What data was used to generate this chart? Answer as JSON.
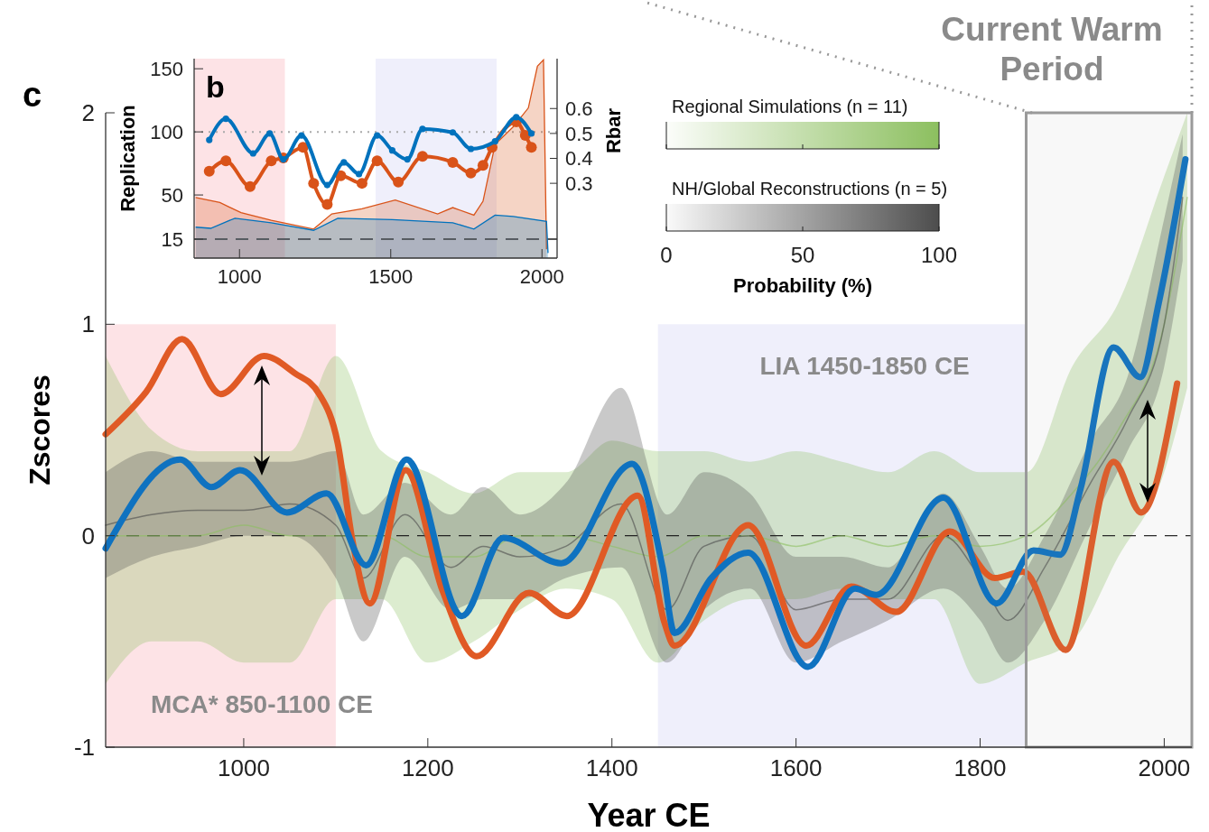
{
  "chart_data": [
    {
      "type": "line",
      "title": "c",
      "xlabel": "Year CE",
      "ylabel": "Zscores",
      "xlim": [
        850,
        2030
      ],
      "xticks": [
        1000,
        1200,
        1400,
        1600,
        1800,
        2000
      ],
      "ylim": [
        -1,
        2
      ],
      "yticks": [
        -1,
        0,
        1,
        2
      ],
      "grid": false,
      "clabel": "Probability (%)",
      "annotations": [
        "Regional Simulations (n = 11)",
        "NH/Global Reconstructions (n = 5)",
        "0",
        "50",
        "100"
      ],
      "marker": "none",
      "series": [
        {
          "color": "#8cbf5f",
          "x": [
            850,
            900,
            950,
            1000,
            1050,
            1100,
            1150,
            1200,
            1250,
            1300,
            1350,
            1400,
            1450,
            1500,
            1550,
            1600,
            1650,
            1700,
            1750,
            1800,
            1850,
            1900,
            1950,
            2000,
            2025
          ],
          "values": [
            0,
            0,
            0,
            0.05,
            0,
            0,
            0,
            -0.1,
            -0.1,
            0,
            0,
            -0.05,
            -0.1,
            0,
            0,
            -0.05,
            0,
            -0.05,
            0,
            -0.05,
            0,
            0.2,
            0.5,
            1,
            1.6
          ],
          "lower": [
            -0.7,
            -0.5,
            -0.5,
            -0.6,
            -0.6,
            -0.3,
            -0.3,
            -0.6,
            -0.5,
            -0.35,
            -0.25,
            -0.3,
            -0.6,
            -0.4,
            -0.3,
            -0.3,
            -0.25,
            -0.3,
            -0.3,
            -0.7,
            -0.6,
            -0.5,
            -0.1,
            0.3,
            0.7
          ],
          "upper": [
            0.85,
            0.5,
            0.4,
            0.4,
            0.4,
            0.85,
            0.4,
            0.3,
            0.2,
            0.3,
            0.3,
            0.45,
            0.4,
            0.4,
            0.35,
            0.4,
            0.35,
            0.3,
            0.4,
            0.3,
            0.3,
            0.8,
            1.1,
            1.7,
            2
          ]
        },
        {
          "color": "#4d4d4d",
          "x": [
            850,
            900,
            950,
            1000,
            1050,
            1100,
            1130,
            1175,
            1225,
            1260,
            1300,
            1350,
            1410,
            1460,
            1500,
            1550,
            1600,
            1650,
            1700,
            1760,
            1800,
            1830,
            1870,
            1920,
            1960,
            2000,
            2020
          ],
          "values": [
            0.05,
            0.1,
            0.12,
            0.12,
            0.15,
            0.05,
            -0.2,
            0.1,
            -0.15,
            -0.05,
            -0.1,
            -0.05,
            0.15,
            -0.35,
            -0.05,
            0,
            -0.35,
            -0.3,
            -0.3,
            0,
            -0.2,
            -0.4,
            -0.15,
            0.25,
            0.55,
            1,
            1.6
          ],
          "lower": [
            -0.2,
            -0.1,
            -0.05,
            0,
            0,
            -0.2,
            -0.5,
            -0.1,
            -0.35,
            -0.3,
            -0.3,
            -0.2,
            -0.15,
            -0.6,
            -0.35,
            -0.25,
            -0.6,
            -0.5,
            -0.4,
            -0.25,
            -0.4,
            -0.6,
            -0.4,
            0.05,
            0.4,
            0.8,
            1.3
          ],
          "upper": [
            0.3,
            0.4,
            0.35,
            0.35,
            0.35,
            0.4,
            0.1,
            0.25,
            0.1,
            0.23,
            0.1,
            0.25,
            0.7,
            0.1,
            0.3,
            0.2,
            -0.1,
            -0.1,
            -0.15,
            0.2,
            -0.05,
            -0.25,
            0,
            0.45,
            0.75,
            1.5,
            1.9
          ]
        },
        {
          "color": "#e05a25",
          "x": [
            850,
            894,
            933,
            975,
            1022,
            1055,
            1082,
            1102,
            1118,
            1137,
            1176,
            1216,
            1253,
            1310,
            1351,
            1428,
            1457,
            1468,
            1548,
            1611,
            1660,
            1709,
            1767,
            1816,
            1847,
            1893,
            1945,
            1975,
            2014
          ],
          "values": [
            0.48,
            0.68,
            0.93,
            0.67,
            0.85,
            0.77,
            0.67,
            0.44,
            -0.02,
            -0.32,
            0.31,
            -0.26,
            -0.57,
            -0.27,
            -0.38,
            0.19,
            -0.41,
            -0.52,
            0.05,
            -0.52,
            -0.24,
            -0.36,
            0.02,
            -0.2,
            -0.17,
            -0.54,
            0.35,
            0.11,
            0.72
          ]
        },
        {
          "color": "#0f72c0",
          "x": [
            850,
            931,
            965,
            996,
            1047,
            1090,
            1133,
            1177,
            1237,
            1282,
            1345,
            1422,
            1455,
            1468,
            1508,
            1548,
            1613,
            1664,
            1687,
            1760,
            1818,
            1858,
            1887,
            1909,
            1945,
            1974,
            1994,
            2023
          ],
          "values": [
            -0.06,
            0.36,
            0.23,
            0.31,
            0.11,
            0.2,
            -0.14,
            0.36,
            -0.38,
            -0.01,
            -0.13,
            0.34,
            -0.15,
            -0.46,
            -0.2,
            -0.08,
            -0.62,
            -0.25,
            -0.28,
            0.18,
            -0.32,
            -0.07,
            -0.09,
            0.22,
            0.89,
            0.75,
            1.1,
            1.78
          ]
        }
      ],
      "ref_lines": [
        {
          "axis": "y",
          "value": 0,
          "color": "#222222",
          "line_style": "dashed"
        }
      ],
      "bands": [
        {
          "axis": "x",
          "from": 850,
          "to": 1100,
          "label": "MCA* 850-1100 CE",
          "color": "#fde3e6"
        },
        {
          "axis": "x",
          "from": 1450,
          "to": 1850,
          "label": "LIA 1450-1850 CE",
          "color": "#efeffb"
        },
        {
          "axis": "x",
          "from": 1850,
          "to": 2030,
          "label": "Current Warm Period",
          "color": "#9a9a9a"
        }
      ]
    },
    {
      "type": "line",
      "title": "b",
      "ylabel": "Replication",
      "y2label": "Rbar",
      "xlim": [
        850,
        2050
      ],
      "xticks": [
        1000,
        1500,
        2000
      ],
      "ylim": [
        0,
        158
      ],
      "yticks": [
        15,
        50,
        100,
        150
      ],
      "y2lim": [
        0,
        0.8
      ],
      "y2ticks": [
        0.3,
        0.4,
        0.5,
        0.6
      ],
      "grid": false,
      "series": [
        {
          "type": "area",
          "color": "#d95319",
          "x": [
            855,
            935,
            1005,
            1105,
            1245,
            1305,
            1405,
            1515,
            1655,
            1705,
            1775,
            1805,
            1845,
            1905,
            1955,
            1985,
            2005,
            2015
          ],
          "values": [
            48,
            44,
            36,
            30,
            23,
            35,
            39,
            46,
            35,
            40,
            34,
            45,
            90,
            104,
            119,
            152,
            157,
            7
          ]
        },
        {
          "type": "area",
          "color": "#0072bd",
          "x": [
            855,
            905,
            985,
            1105,
            1245,
            1325,
            1505,
            1705,
            1775,
            1845,
            1905,
            2015,
            2020
          ],
          "values": [
            24.5,
            23.6,
            31.6,
            28,
            22,
            31.6,
            30.5,
            28,
            23,
            34,
            33,
            29,
            4
          ]
        },
        {
          "axis": "y2",
          "marker": "circle",
          "color": "#d95319",
          "x": [
            900,
            955,
            1035,
            1105,
            1145,
            1210,
            1245,
            1290,
            1335,
            1405,
            1455,
            1525,
            1605,
            1705,
            1765,
            1805,
            1835,
            1915,
            1945,
            1965
          ],
          "values": [
            0.348,
            0.39,
            0.287,
            0.39,
            0.402,
            0.444,
            0.3,
            0.215,
            0.33,
            0.3,
            0.39,
            0.305,
            0.408,
            0.384,
            0.341,
            0.372,
            0.444,
            0.547,
            0.492,
            0.444
          ]
        },
        {
          "axis": "y2",
          "marker": "circle",
          "color": "#0072bd",
          "x": [
            900,
            955,
            1045,
            1100,
            1145,
            1205,
            1290,
            1345,
            1395,
            1455,
            1505,
            1555,
            1605,
            1705,
            1765,
            1845,
            1915,
            1965
          ],
          "values": [
            0.474,
            0.559,
            0.42,
            0.5,
            0.396,
            0.492,
            0.293,
            0.384,
            0.337,
            0.492,
            0.432,
            0.396,
            0.518,
            0.504,
            0.438,
            0.468,
            0.565,
            0.5
          ]
        }
      ],
      "ref_lines": [
        {
          "axis": "y",
          "value": 15,
          "color": "#555555",
          "line_style": "dashed"
        },
        {
          "axis": "y",
          "value": 100,
          "color": "#aaaaaa",
          "line_style": "dotted"
        }
      ],
      "bands": [
        {
          "axis": "x",
          "from": 850,
          "to": 1150,
          "color": "#fde3e6"
        },
        {
          "axis": "x",
          "from": 1450,
          "to": 1850,
          "color": "#efeffb"
        }
      ]
    }
  ]
}
